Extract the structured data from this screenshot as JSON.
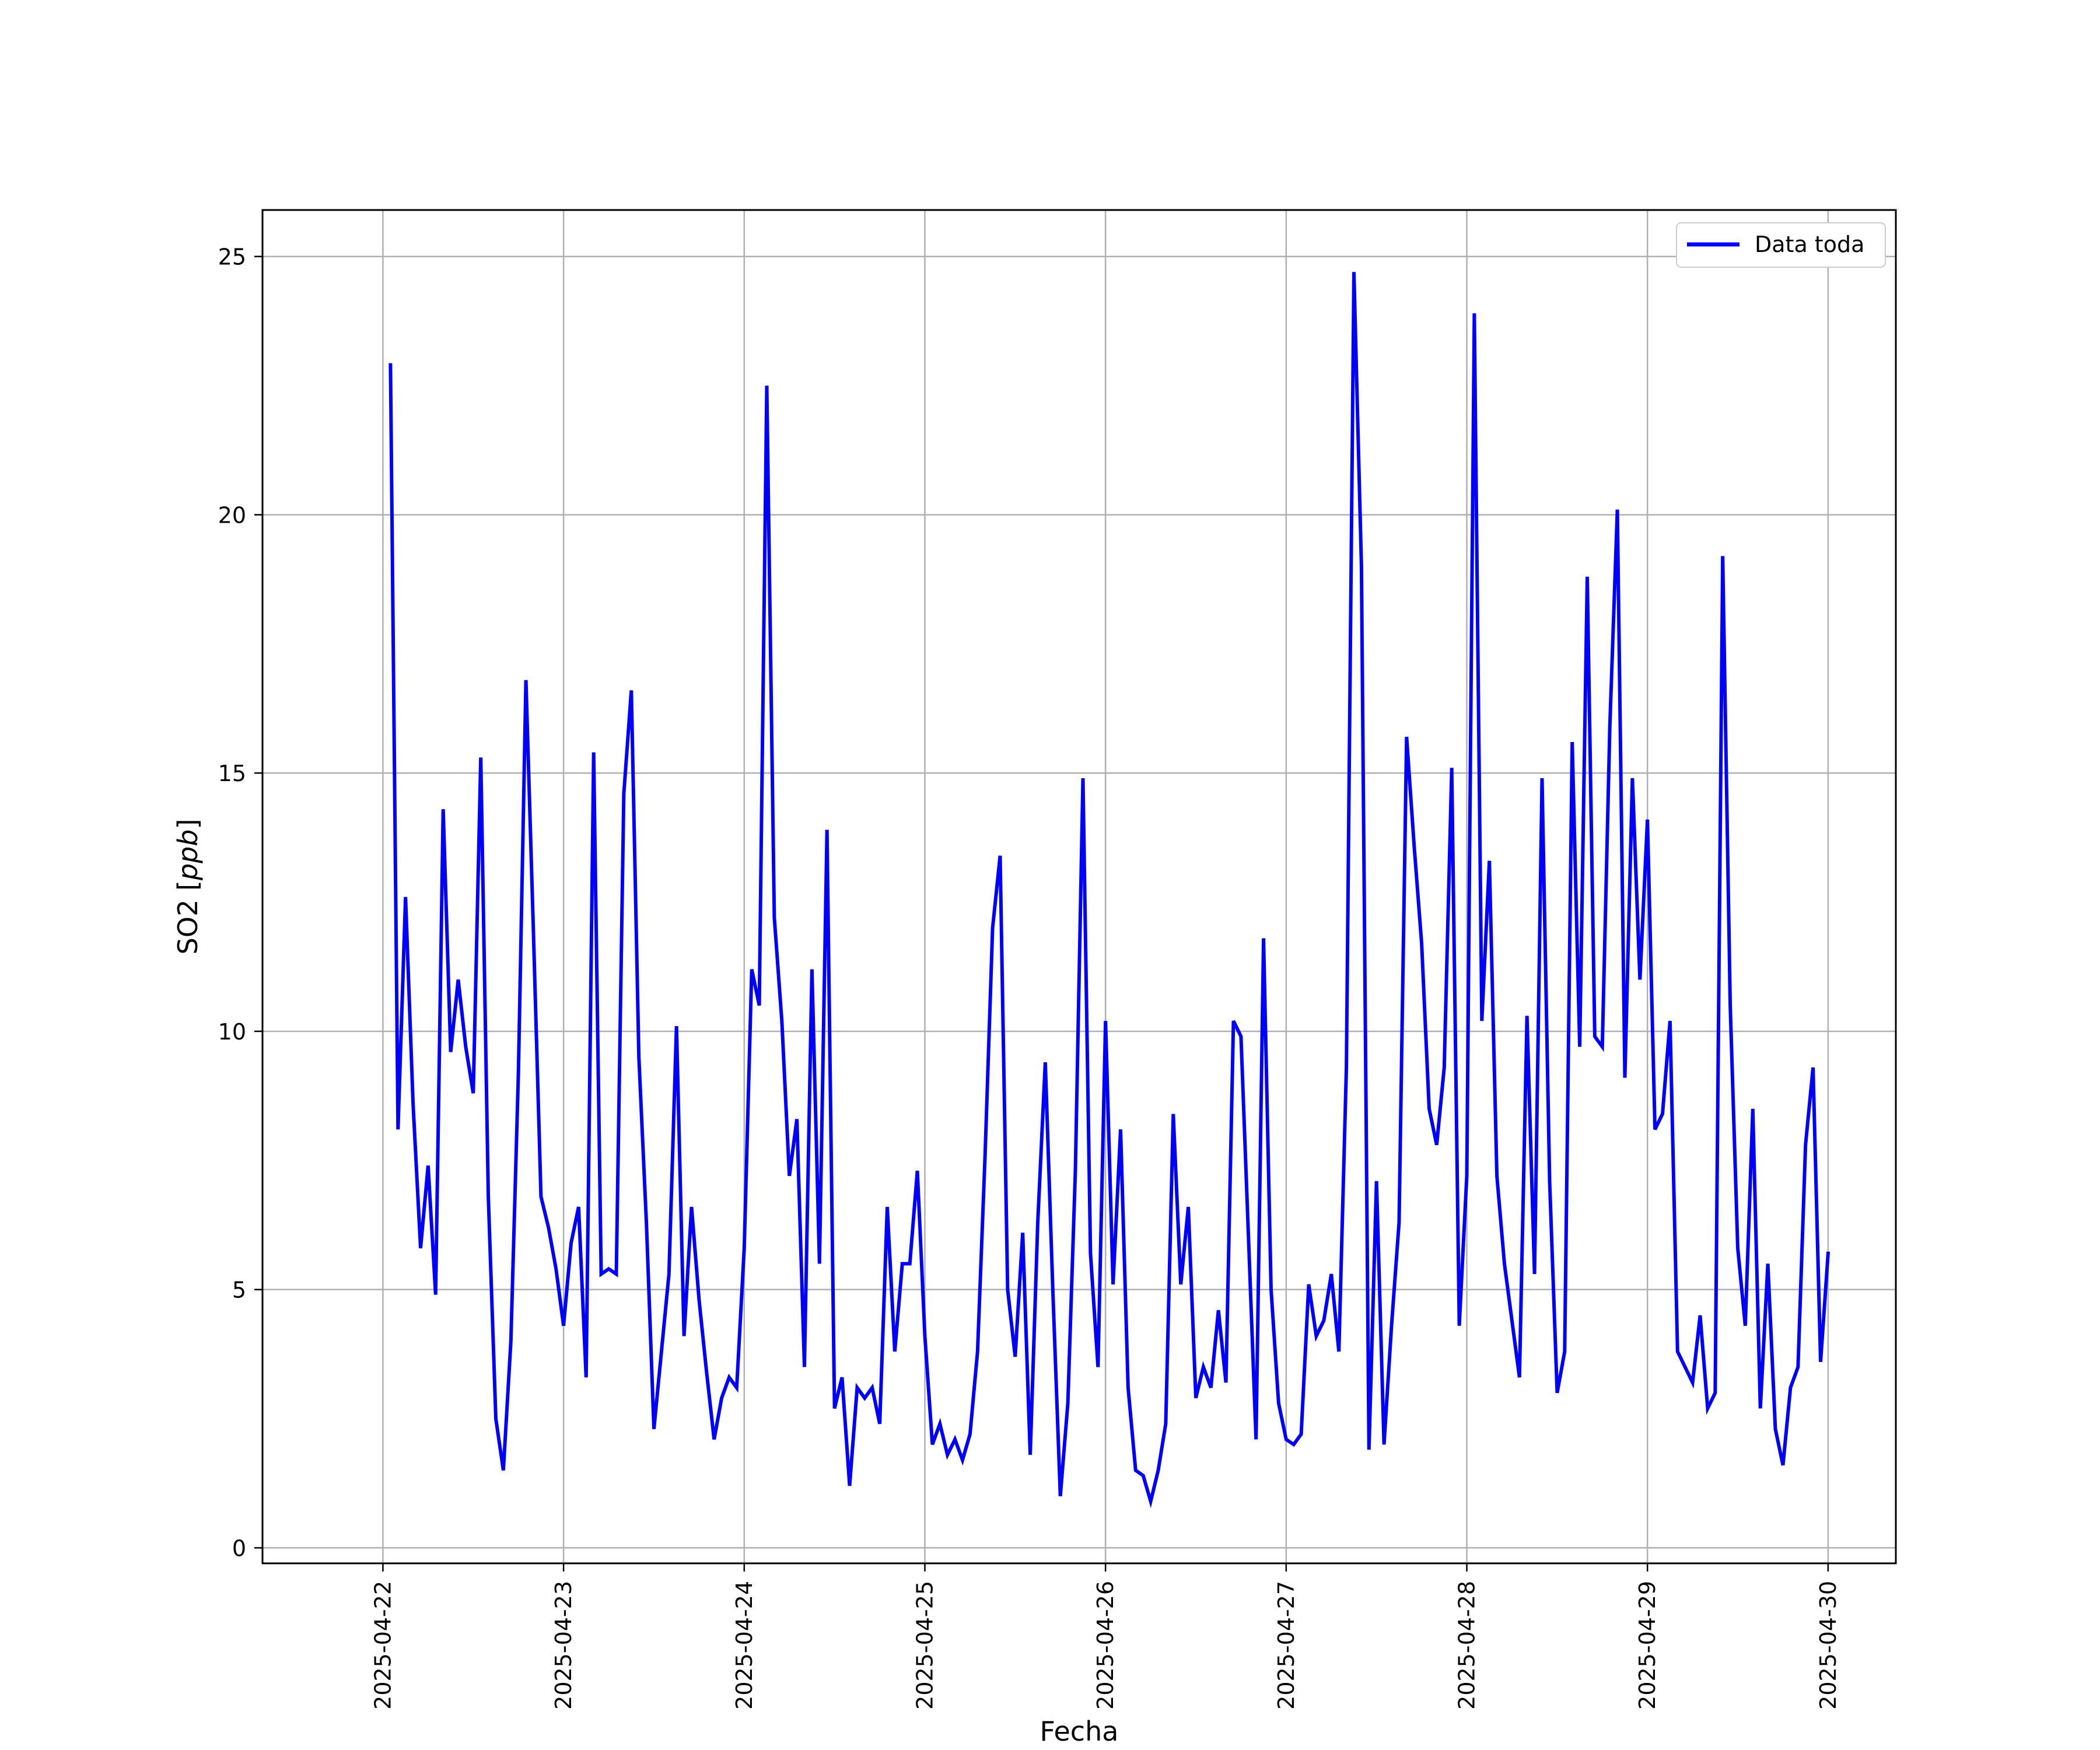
{
  "chart_data": {
    "type": "line",
    "title": "",
    "xlabel": "Fecha",
    "ylabel": "SO2 [ppb]",
    "ylabel_parts": {
      "plain": "SO2 [",
      "italic": "ppb",
      "close": "]"
    },
    "x_ticks": [
      "2025-04-22",
      "2025-04-23",
      "2025-04-24",
      "2025-04-25",
      "2025-04-26",
      "2025-04-27",
      "2025-04-28",
      "2025-04-29",
      "2025-04-30"
    ],
    "y_ticks": [
      0,
      5,
      10,
      15,
      20,
      25
    ],
    "ylim": [
      -0.3,
      25.9
    ],
    "xlim": [
      "2025-04-21T08:00",
      "2025-04-30T09:00"
    ],
    "grid": true,
    "legend_position": "top-right",
    "series": [
      {
        "name": "Data toda",
        "color": "#0000ff",
        "x": [
          "2025-04-22T01:00",
          "2025-04-22T02:00",
          "2025-04-22T03:00",
          "2025-04-22T04:00",
          "2025-04-22T05:00",
          "2025-04-22T06:00",
          "2025-04-22T07:00",
          "2025-04-22T08:00",
          "2025-04-22T09:00",
          "2025-04-22T10:00",
          "2025-04-22T11:00",
          "2025-04-22T12:00",
          "2025-04-22T13:00",
          "2025-04-22T14:00",
          "2025-04-22T15:00",
          "2025-04-22T16:00",
          "2025-04-22T17:00",
          "2025-04-22T18:00",
          "2025-04-22T19:00",
          "2025-04-22T20:00",
          "2025-04-22T21:00",
          "2025-04-22T22:00",
          "2025-04-22T23:00",
          "2025-04-23T00:00",
          "2025-04-23T01:00",
          "2025-04-23T02:00",
          "2025-04-23T03:00",
          "2025-04-23T04:00",
          "2025-04-23T05:00",
          "2025-04-23T06:00",
          "2025-04-23T07:00",
          "2025-04-23T08:00",
          "2025-04-23T09:00",
          "2025-04-23T10:00",
          "2025-04-23T11:00",
          "2025-04-23T12:00",
          "2025-04-23T13:00",
          "2025-04-23T14:00",
          "2025-04-23T15:00",
          "2025-04-23T16:00",
          "2025-04-23T17:00",
          "2025-04-23T18:00",
          "2025-04-23T19:00",
          "2025-04-23T20:00",
          "2025-04-23T21:00",
          "2025-04-23T22:00",
          "2025-04-23T23:00",
          "2025-04-24T00:00",
          "2025-04-24T01:00",
          "2025-04-24T02:00",
          "2025-04-24T03:00",
          "2025-04-24T04:00",
          "2025-04-24T05:00",
          "2025-04-24T06:00",
          "2025-04-24T07:00",
          "2025-04-24T08:00",
          "2025-04-24T09:00",
          "2025-04-24T10:00",
          "2025-04-24T11:00",
          "2025-04-24T12:00",
          "2025-04-24T13:00",
          "2025-04-24T14:00",
          "2025-04-24T15:00",
          "2025-04-24T16:00",
          "2025-04-24T17:00",
          "2025-04-24T18:00",
          "2025-04-24T19:00",
          "2025-04-24T20:00",
          "2025-04-24T21:00",
          "2025-04-24T22:00",
          "2025-04-24T23:00",
          "2025-04-25T00:00",
          "2025-04-25T01:00",
          "2025-04-25T02:00",
          "2025-04-25T03:00",
          "2025-04-25T04:00",
          "2025-04-25T05:00",
          "2025-04-25T06:00",
          "2025-04-25T07:00",
          "2025-04-25T08:00",
          "2025-04-25T09:00",
          "2025-04-25T10:00",
          "2025-04-25T11:00",
          "2025-04-25T12:00",
          "2025-04-25T13:00",
          "2025-04-25T14:00",
          "2025-04-25T15:00",
          "2025-04-25T16:00",
          "2025-04-25T17:00",
          "2025-04-25T18:00",
          "2025-04-25T19:00",
          "2025-04-25T20:00",
          "2025-04-25T21:00",
          "2025-04-25T22:00",
          "2025-04-25T23:00",
          "2025-04-26T00:00",
          "2025-04-26T01:00",
          "2025-04-26T02:00",
          "2025-04-26T03:00",
          "2025-04-26T04:00",
          "2025-04-26T05:00",
          "2025-04-26T06:00",
          "2025-04-26T07:00",
          "2025-04-26T08:00",
          "2025-04-26T09:00",
          "2025-04-26T10:00",
          "2025-04-26T11:00",
          "2025-04-26T12:00",
          "2025-04-26T13:00",
          "2025-04-26T14:00",
          "2025-04-26T15:00",
          "2025-04-26T16:00",
          "2025-04-26T17:00",
          "2025-04-26T18:00",
          "2025-04-26T19:00",
          "2025-04-26T20:00",
          "2025-04-26T21:00",
          "2025-04-26T22:00",
          "2025-04-26T23:00",
          "2025-04-27T00:00",
          "2025-04-27T01:00",
          "2025-04-27T02:00",
          "2025-04-27T03:00",
          "2025-04-27T04:00",
          "2025-04-27T05:00",
          "2025-04-27T06:00",
          "2025-04-27T07:00",
          "2025-04-27T08:00",
          "2025-04-27T09:00",
          "2025-04-27T10:00",
          "2025-04-27T11:00",
          "2025-04-27T12:00",
          "2025-04-27T13:00",
          "2025-04-27T14:00",
          "2025-04-27T15:00",
          "2025-04-27T16:00",
          "2025-04-27T17:00",
          "2025-04-27T18:00",
          "2025-04-27T19:00",
          "2025-04-27T20:00",
          "2025-04-27T21:00",
          "2025-04-27T22:00",
          "2025-04-27T23:00",
          "2025-04-28T00:00",
          "2025-04-28T01:00",
          "2025-04-28T02:00",
          "2025-04-28T03:00",
          "2025-04-28T04:00",
          "2025-04-28T05:00",
          "2025-04-28T06:00",
          "2025-04-28T07:00",
          "2025-04-28T08:00",
          "2025-04-28T09:00",
          "2025-04-28T10:00",
          "2025-04-28T11:00",
          "2025-04-28T12:00",
          "2025-04-28T13:00",
          "2025-04-28T14:00",
          "2025-04-28T15:00",
          "2025-04-28T16:00",
          "2025-04-28T17:00",
          "2025-04-28T18:00",
          "2025-04-28T19:00",
          "2025-04-28T20:00",
          "2025-04-28T21:00",
          "2025-04-28T22:00",
          "2025-04-28T23:00",
          "2025-04-29T00:00",
          "2025-04-29T01:00",
          "2025-04-29T02:00",
          "2025-04-29T03:00",
          "2025-04-29T04:00",
          "2025-04-29T05:00",
          "2025-04-29T06:00",
          "2025-04-29T07:00",
          "2025-04-29T08:00",
          "2025-04-29T09:00",
          "2025-04-29T10:00",
          "2025-04-29T11:00",
          "2025-04-29T12:00",
          "2025-04-29T13:00",
          "2025-04-29T14:00",
          "2025-04-29T15:00",
          "2025-04-29T16:00",
          "2025-04-29T17:00",
          "2025-04-29T18:00",
          "2025-04-29T19:00",
          "2025-04-29T20:00",
          "2025-04-29T21:00",
          "2025-04-29T22:00",
          "2025-04-29T23:00",
          "2025-04-30T00:00"
        ],
        "y": [
          22.9,
          8.1,
          12.6,
          8.6,
          5.8,
          7.4,
          4.9,
          14.3,
          9.6,
          11.0,
          9.7,
          8.8,
          15.3,
          6.8,
          2.5,
          1.5,
          4.0,
          9.2,
          16.8,
          11.9,
          6.8,
          6.2,
          5.4,
          4.3,
          5.9,
          6.6,
          3.3,
          15.4,
          5.3,
          5.4,
          5.3,
          14.6,
          16.6,
          9.5,
          6.3,
          2.3,
          3.8,
          5.3,
          10.1,
          4.1,
          6.6,
          4.8,
          3.4,
          2.1,
          2.9,
          3.3,
          3.1,
          5.8,
          11.2,
          10.5,
          22.5,
          12.2,
          10.2,
          7.2,
          8.3,
          3.5,
          11.2,
          5.5,
          13.9,
          2.7,
          3.3,
          1.2,
          3.1,
          2.9,
          3.1,
          2.4,
          6.6,
          3.8,
          5.5,
          5.5,
          7.3,
          4.1,
          2.0,
          2.4,
          1.8,
          2.1,
          1.7,
          2.2,
          3.8,
          7.6,
          12.0,
          13.4,
          5.0,
          3.7,
          6.1,
          1.8,
          6.3,
          9.4,
          5.0,
          1.0,
          2.8,
          7.3,
          14.9,
          5.7,
          3.5,
          10.2,
          5.1,
          8.1,
          3.1,
          1.5,
          1.4,
          0.9,
          1.5,
          2.4,
          8.4,
          5.1,
          6.6,
          2.9,
          3.5,
          3.1,
          4.6,
          3.2,
          10.2,
          9.9,
          6.0,
          2.1,
          11.8,
          5.0,
          2.8,
          2.1,
          2.0,
          2.2,
          5.1,
          4.1,
          4.4,
          5.3,
          3.8,
          9.3,
          24.7,
          19.0,
          1.9,
          7.1,
          2.0,
          4.3,
          6.3,
          15.7,
          13.6,
          11.7,
          8.5,
          7.8,
          9.3,
          15.1,
          4.3,
          7.2,
          23.9,
          10.2,
          13.3,
          7.2,
          5.5,
          4.4,
          3.3,
          10.3,
          5.3,
          14.9,
          7.1,
          3.0,
          3.8,
          15.6,
          9.7,
          18.8,
          9.9,
          9.7,
          15.9,
          20.1,
          9.1,
          14.9,
          11.0,
          14.1,
          8.1,
          8.4,
          10.2,
          3.8,
          3.5,
          3.2,
          4.5,
          2.7,
          3.0,
          19.2,
          10.5,
          5.8,
          4.3,
          8.5,
          2.7,
          5.5,
          2.3,
          1.6,
          3.1,
          3.5,
          7.8,
          9.3,
          3.6,
          5.7
        ]
      }
    ]
  }
}
